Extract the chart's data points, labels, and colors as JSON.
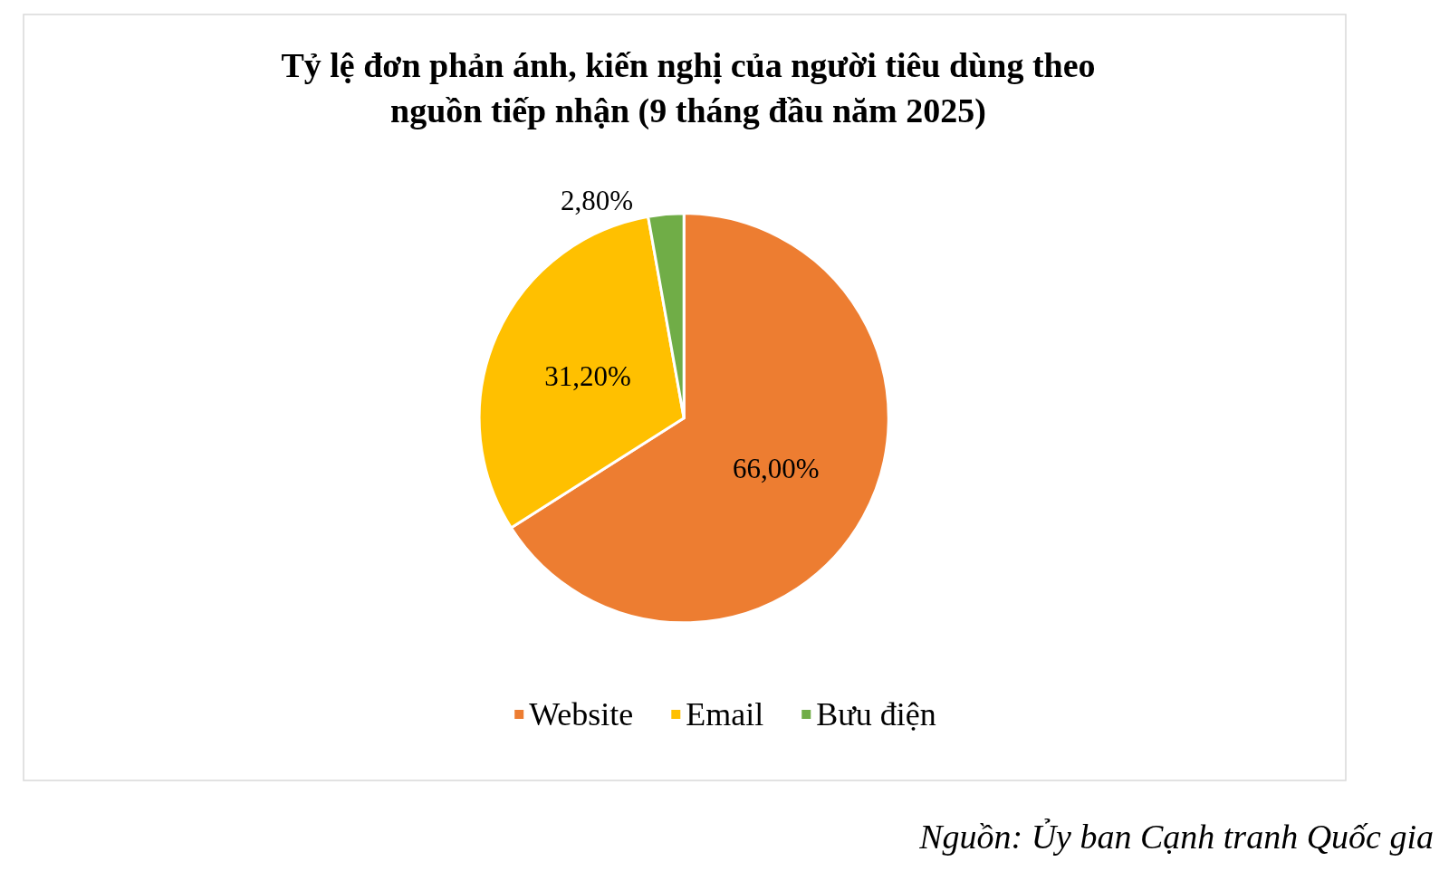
{
  "chart_data": {
    "type": "pie",
    "title": "Tỷ lệ đơn phản ánh, kiến nghị của người tiêu dùng theo\nnguồn tiếp nhận (9 tháng đầu năm 2025)",
    "categories": [
      "Website",
      "Email",
      "Bưu điện"
    ],
    "values": [
      66.0,
      31.2,
      2.8
    ],
    "value_labels": [
      "66,00%",
      "31,20%",
      "2,80%"
    ],
    "colors": [
      "#ed7d31",
      "#ffc000",
      "#70ad47"
    ],
    "legend": "bottom",
    "annotations": [
      "Nguồn: Ủy ban Cạnh tranh Quốc gia"
    ]
  }
}
